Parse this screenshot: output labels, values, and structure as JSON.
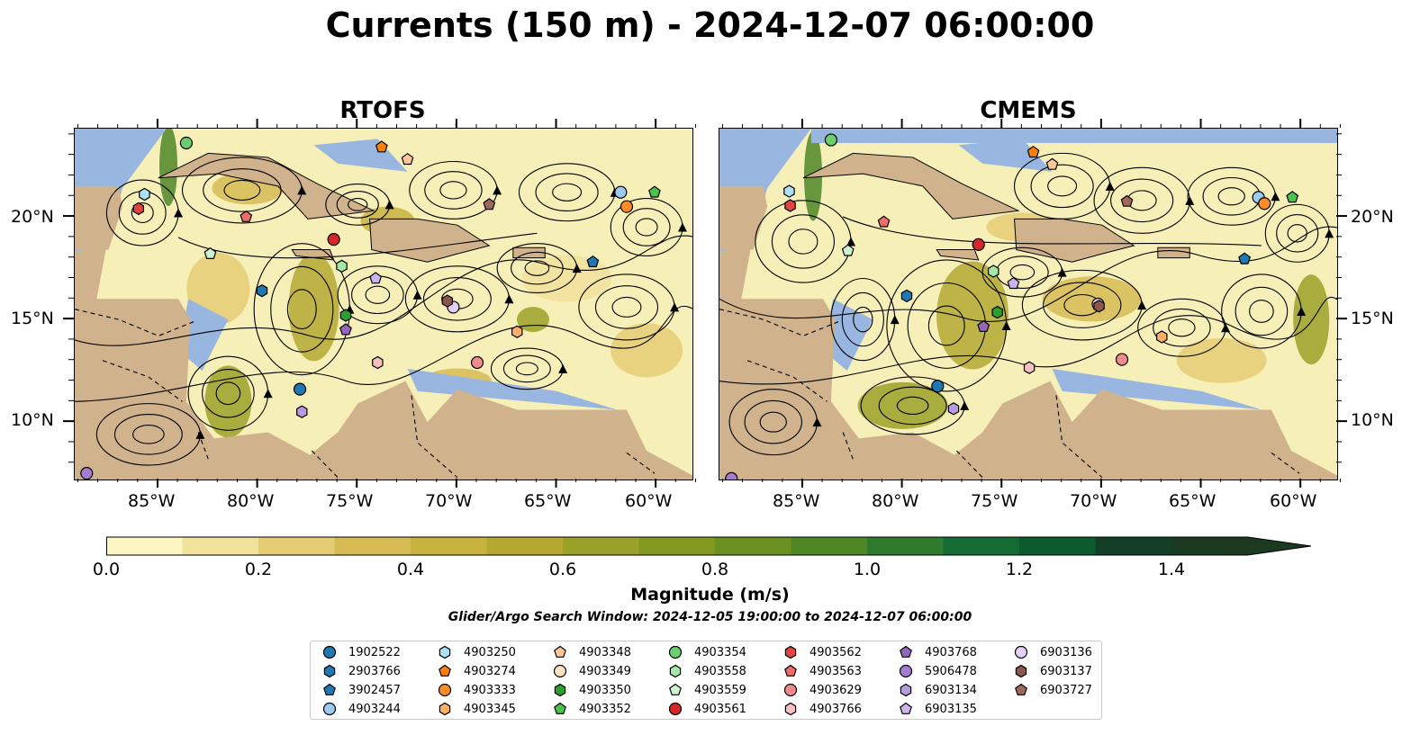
{
  "title": "Currents (150 m) - 2024-12-07 06:00:00",
  "panels": [
    {
      "title": "RTOFS"
    },
    {
      "title": "CMEMS"
    }
  ],
  "lon_ticks": [
    "85°W",
    "80°W",
    "75°W",
    "70°W",
    "65°W",
    "60°W"
  ],
  "lat_ticks": [
    "20°N",
    "15°N",
    "10°N"
  ],
  "colorbar": {
    "label": "Magnitude (m/s)",
    "ticks": [
      "0.0",
      "0.2",
      "0.4",
      "0.6",
      "0.8",
      "1.0",
      "1.2",
      "1.4"
    ],
    "range": [
      0.0,
      1.5
    ],
    "colors": [
      "#fbf6c3",
      "#f1e29b",
      "#e5cd76",
      "#d6bb54",
      "#c7b23e",
      "#b4a831",
      "#9aa128",
      "#82991f",
      "#6b9022",
      "#4f8626",
      "#2f7a2d",
      "#146b33",
      "#0b5b2f",
      "#123f26",
      "#1c3a21"
    ]
  },
  "search_window": "Glider/Argo Search Window: 2024-12-05 19:00:00 to 2024-12-07 06:00:00",
  "colors": {
    "ocean_low": "#f7efb8",
    "water_fill": "#99b6e0",
    "land": "#d0b38c",
    "streamline": "#000000"
  },
  "legend": [
    {
      "id": "1902522",
      "marker": "circle",
      "color": "#1f77b4"
    },
    {
      "id": "2903766",
      "marker": "hexagon",
      "color": "#1f77b4"
    },
    {
      "id": "3902457",
      "marker": "pentagon",
      "color": "#1f77b4"
    },
    {
      "id": "4903244",
      "marker": "circle",
      "color": "#9ec9f0"
    },
    {
      "id": "4903250",
      "marker": "hexagon",
      "color": "#aee0f7"
    },
    {
      "id": "4903274",
      "marker": "pentagon",
      "color": "#ff7f0e"
    },
    {
      "id": "4903333",
      "marker": "circle",
      "color": "#ff8c2b"
    },
    {
      "id": "4903345",
      "marker": "hexagon",
      "color": "#ffb066"
    },
    {
      "id": "4903348",
      "marker": "pentagon",
      "color": "#ffc79a"
    },
    {
      "id": "4903349",
      "marker": "circle",
      "color": "#ffe1c2"
    },
    {
      "id": "4903350",
      "marker": "hexagon",
      "color": "#2ca02c"
    },
    {
      "id": "4903352",
      "marker": "pentagon",
      "color": "#4cc24c"
    },
    {
      "id": "4903354",
      "marker": "circle",
      "color": "#6ccf6c"
    },
    {
      "id": "4903558",
      "marker": "hexagon",
      "color": "#a6e6a6"
    },
    {
      "id": "4903559",
      "marker": "pentagon",
      "color": "#cff3cf"
    },
    {
      "id": "4903561",
      "marker": "circle",
      "color": "#d62728"
    },
    {
      "id": "4903562",
      "marker": "hexagon",
      "color": "#e04444"
    },
    {
      "id": "4903563",
      "marker": "pentagon",
      "color": "#ec6b6b"
    },
    {
      "id": "4903629",
      "marker": "circle",
      "color": "#f08b8b"
    },
    {
      "id": "4903766",
      "marker": "hexagon",
      "color": "#f8c0c0"
    },
    {
      "id": "4903768",
      "marker": "pentagon",
      "color": "#9467bd"
    },
    {
      "id": "5906478",
      "marker": "circle",
      "color": "#a47dd0"
    },
    {
      "id": "6903134",
      "marker": "hexagon",
      "color": "#b89ae0"
    },
    {
      "id": "6903135",
      "marker": "pentagon",
      "color": "#cdb4ee"
    },
    {
      "id": "6903136",
      "marker": "circle",
      "color": "#e2d0f8"
    },
    {
      "id": "6903137",
      "marker": "hexagon",
      "color": "#8c564b"
    },
    {
      "id": "6903727",
      "marker": "pentagon",
      "color": "#a0685b"
    }
  ],
  "markers": [
    {
      "id": "1902522",
      "lon": -77.9,
      "lat": 11.6
    },
    {
      "id": "2903766",
      "lon": -79.8,
      "lat": 16.4
    },
    {
      "id": "3902457",
      "lon": -63.2,
      "lat": 17.8
    },
    {
      "id": "4903244",
      "lon": -61.8,
      "lat": 21.2
    },
    {
      "id": "4903250",
      "lon": -85.7,
      "lat": 21.1
    },
    {
      "id": "4903274",
      "lon": -73.8,
      "lat": 23.4
    },
    {
      "id": "4903333",
      "lon": -61.5,
      "lat": 20.5
    },
    {
      "id": "4903348",
      "lon": -72.5,
      "lat": 22.8
    },
    {
      "id": "4903350",
      "lon": -75.6,
      "lat": 15.2
    },
    {
      "id": "4903352",
      "lon": -60.1,
      "lat": 21.2
    },
    {
      "id": "4903354",
      "lon": -83.6,
      "lat": 23.6
    },
    {
      "id": "4903558",
      "lon": -75.8,
      "lat": 17.6
    },
    {
      "id": "4903559",
      "lon": -82.4,
      "lat": 18.2
    },
    {
      "id": "4903561",
      "lon": -76.2,
      "lat": 18.9
    },
    {
      "id": "4903562",
      "lon": -86.0,
      "lat": 20.4
    },
    {
      "id": "4903563",
      "lon": -80.6,
      "lat": 20.0
    },
    {
      "id": "4903629",
      "lon": -69.0,
      "lat": 12.9
    },
    {
      "id": "4903766",
      "lon": -74.0,
      "lat": 12.9
    },
    {
      "id": "4903768",
      "lon": -75.6,
      "lat": 14.5
    },
    {
      "id": "5906478",
      "lon": -88.6,
      "lat": 7.5
    },
    {
      "id": "6903134",
      "lon": -77.8,
      "lat": 10.5
    },
    {
      "id": "6903135",
      "lon": -74.1,
      "lat": 17.0
    },
    {
      "id": "6903136",
      "lon": -70.2,
      "lat": 15.6
    },
    {
      "id": "6903137",
      "lon": -70.5,
      "lat": 15.9
    },
    {
      "id": "6903727",
      "lon": -68.4,
      "lat": 20.6
    },
    {
      "id": "4903345",
      "lon": -67.0,
      "lat": 14.4
    }
  ]
}
